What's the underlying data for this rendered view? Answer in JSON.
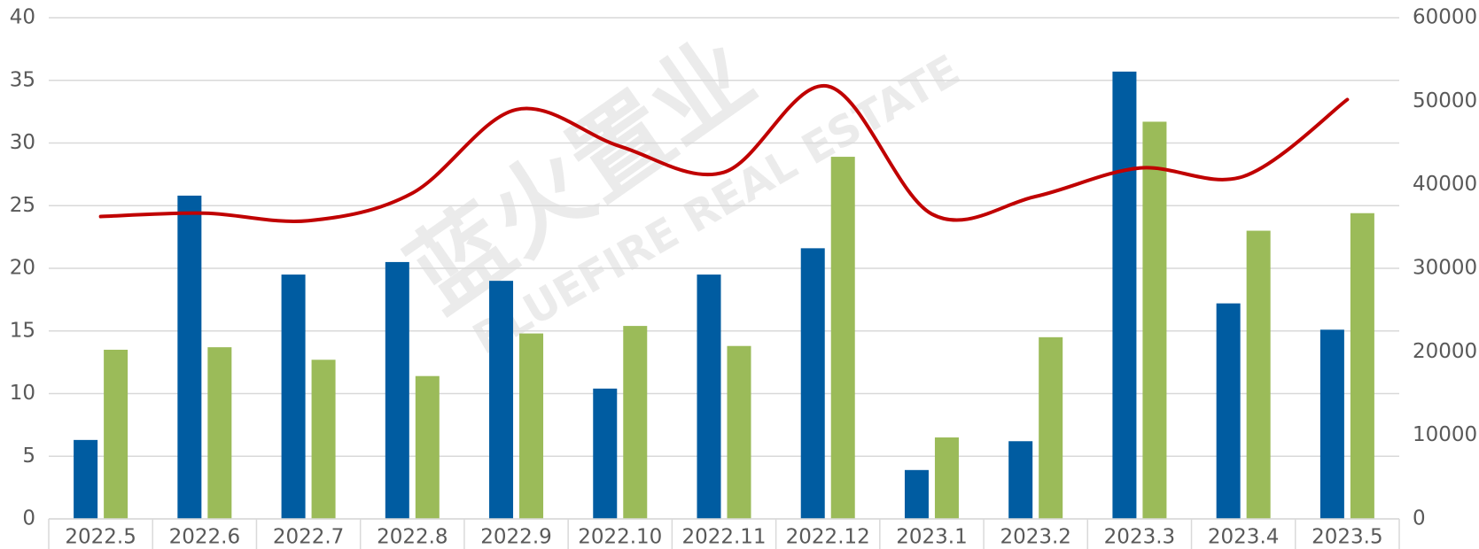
{
  "chart_data": {
    "type": "bar",
    "watermark": {
      "cn": "蓝火置业",
      "en": "BLUEFIRE REAL ESTATE"
    },
    "categories": [
      "2022.5",
      "2022.6",
      "2022.7",
      "2022.8",
      "2022.9",
      "2022.10",
      "2022.11",
      "2022.12",
      "2023.1",
      "2023.2",
      "2023.3",
      "2023.4",
      "2023.5"
    ],
    "series": [
      {
        "type": "bar",
        "color": "#005ca1",
        "values": [
          6.3,
          25.8,
          19.5,
          20.5,
          19.0,
          10.4,
          19.5,
          21.6,
          3.9,
          6.2,
          35.7,
          17.2,
          15.1
        ]
      },
      {
        "type": "bar",
        "color": "#9bbb59",
        "values": [
          13.5,
          13.7,
          12.7,
          11.4,
          14.8,
          15.4,
          13.8,
          28.9,
          6.5,
          14.5,
          31.7,
          23.0,
          24.4
        ]
      },
      {
        "type": "line",
        "axis": "y2",
        "color": "#c00000",
        "smooth": true,
        "values": [
          36200,
          36600,
          35700,
          39000,
          49000,
          44600,
          41500,
          51800,
          36500,
          38600,
          42000,
          41000,
          50200
        ]
      }
    ],
    "ylim": [
      0,
      40
    ],
    "yticks": [
      0,
      5,
      10,
      15,
      20,
      25,
      30,
      35,
      40
    ],
    "y2lim": [
      0,
      60000
    ],
    "y2ticks": [
      0,
      10000,
      20000,
      30000,
      40000,
      50000,
      60000
    ],
    "grid": true
  }
}
